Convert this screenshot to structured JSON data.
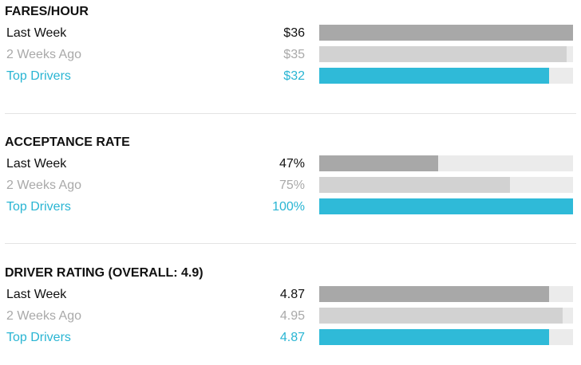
{
  "colors": {
    "last_week_bar": "#a8a8a8",
    "two_weeks_bar": "#d2d2d2",
    "top_drivers_bar": "#2fbad8",
    "bar_track": "#ebebeb",
    "accent_text": "#29b5d3",
    "muted_text": "#a9a9a9"
  },
  "sections": [
    {
      "title": "FARES/HOUR",
      "rows": [
        {
          "label": "Last Week",
          "value": "$36",
          "fill": 1.0
        },
        {
          "label": "2 Weeks Ago",
          "value": "$35",
          "fill": 0.975
        },
        {
          "label": "Top Drivers",
          "value": "$32",
          "fill": 0.905
        }
      ]
    },
    {
      "title": "ACCEPTANCE RATE",
      "rows": [
        {
          "label": "Last Week",
          "value": "47%",
          "fill": 0.47
        },
        {
          "label": "2 Weeks Ago",
          "value": "75%",
          "fill": 0.75
        },
        {
          "label": "Top Drivers",
          "value": "100%",
          "fill": 1.0
        }
      ]
    },
    {
      "title": "DRIVER RATING (OVERALL: 4.9)",
      "rows": [
        {
          "label": "Last Week",
          "value": "4.87",
          "fill": 0.905
        },
        {
          "label": "2 Weeks Ago",
          "value": "4.95",
          "fill": 0.96
        },
        {
          "label": "Top Drivers",
          "value": "4.87",
          "fill": 0.905
        }
      ]
    }
  ]
}
